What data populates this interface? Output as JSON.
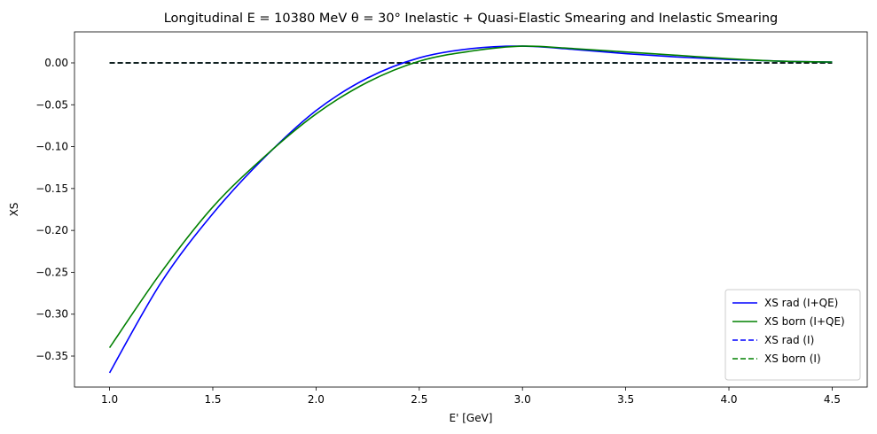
{
  "chart_data": {
    "type": "line",
    "title": "Longitudinal E = 10380 MeV θ = 30° Inelastic + Quasi-Elastic Smearing and Inelastic Smearing",
    "xlabel": "E' [GeV]",
    "ylabel": "XS",
    "xlim": [
      0.83,
      4.67
    ],
    "ylim": [
      -0.387,
      0.037
    ],
    "xticks": [
      1.0,
      1.5,
      2.0,
      2.5,
      3.0,
      3.5,
      4.0,
      4.5
    ],
    "xtick_labels": [
      "1.0",
      "1.5",
      "2.0",
      "2.5",
      "3.0",
      "3.5",
      "4.0",
      "4.5"
    ],
    "yticks": [
      0.0,
      -0.05,
      -0.1,
      -0.15,
      -0.2,
      -0.25,
      -0.3,
      -0.35
    ],
    "ytick_labels": [
      "0.00",
      "−0.05",
      "−0.10",
      "−0.15",
      "−0.20",
      "−0.25",
      "−0.30",
      "−0.35"
    ],
    "grid": false,
    "legend_position": "bottom-right",
    "series": [
      {
        "name": "XS rad (I+QE)",
        "color": "#0000ff",
        "style": "solid",
        "x": [
          1.0,
          1.25,
          1.5,
          1.75,
          2.0,
          2.25,
          2.5,
          2.75,
          3.0,
          3.25,
          3.5,
          3.75,
          4.0,
          4.25,
          4.5
        ],
        "y": [
          -0.37,
          -0.262,
          -0.18,
          -0.113,
          -0.057,
          -0.018,
          0.006,
          0.017,
          0.02,
          0.016,
          0.011,
          0.007,
          0.004,
          0.002,
          0.001
        ]
      },
      {
        "name": "XS born (I+QE)",
        "color": "#008000",
        "style": "solid",
        "x": [
          1.0,
          1.25,
          1.5,
          1.75,
          2.0,
          2.25,
          2.5,
          2.75,
          3.0,
          3.25,
          3.5,
          3.75,
          4.0,
          4.25,
          4.5
        ],
        "y": [
          -0.34,
          -0.25,
          -0.172,
          -0.112,
          -0.061,
          -0.023,
          0.002,
          0.014,
          0.02,
          0.017,
          0.013,
          0.009,
          0.005,
          0.002,
          0.001
        ]
      },
      {
        "name": "XS rad (I)",
        "color": "#0000ff",
        "style": "dashed",
        "x": [
          1.0,
          1.5,
          2.0,
          2.5,
          3.0,
          3.5,
          4.0,
          4.5
        ],
        "y": [
          0.0,
          0.0,
          0.0,
          0.0,
          0.0,
          0.0,
          0.0,
          0.0
        ]
      },
      {
        "name": "XS born (I)",
        "color": "#008000",
        "style": "dashed",
        "x": [
          1.0,
          1.5,
          2.0,
          2.5,
          3.0,
          3.5,
          4.0,
          4.5
        ],
        "y": [
          0.0,
          0.0,
          0.0,
          0.0,
          0.0,
          0.0,
          0.0,
          0.0
        ]
      },
      {
        "name": "",
        "color": "#000000",
        "style": "dashed",
        "x": [
          1.0,
          4.5
        ],
        "y": [
          0.0,
          0.0
        ]
      }
    ]
  }
}
